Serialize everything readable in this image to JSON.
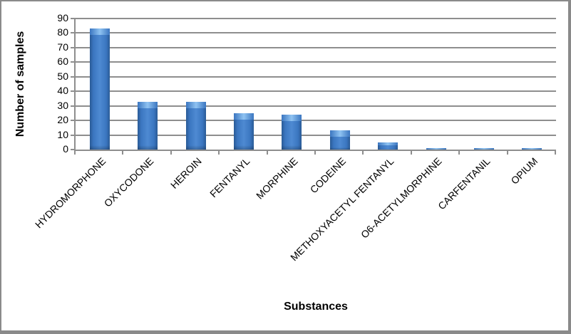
{
  "chart_data": {
    "type": "bar",
    "title": "",
    "xlabel": "Substances",
    "ylabel": "Number of samples",
    "categories": [
      "HYDROMORPHONE",
      "OXYCODONE",
      "HEROIN",
      "FENTANYL",
      "MORPHINE",
      "CODEINE",
      "METHOXYACETYL FENTANYL",
      "O6-ACETYLMORPHINE",
      "CARFENTANIL",
      "OPIUM"
    ],
    "values": [
      83,
      33,
      33,
      25,
      24,
      13,
      5,
      1,
      1,
      1
    ],
    "ylim": [
      0,
      90
    ],
    "yticks": [
      0,
      10,
      20,
      30,
      40,
      50,
      60,
      70,
      80,
      90
    ],
    "grid": true,
    "legend": "none",
    "bar_style": "beveled-3d",
    "label_rotation_deg": -45
  },
  "colors": {
    "background": "#ffffff",
    "frame_border": "#8a8a8a",
    "gridline": "#8e8e8e",
    "axis": "#8e8e8e",
    "text": "#000000",
    "bar_center": "#4e8ad2",
    "bar_mid": "#3b76c0",
    "bar_edge": "#2a5b96",
    "bar_highlight": "#8fc3f2"
  }
}
